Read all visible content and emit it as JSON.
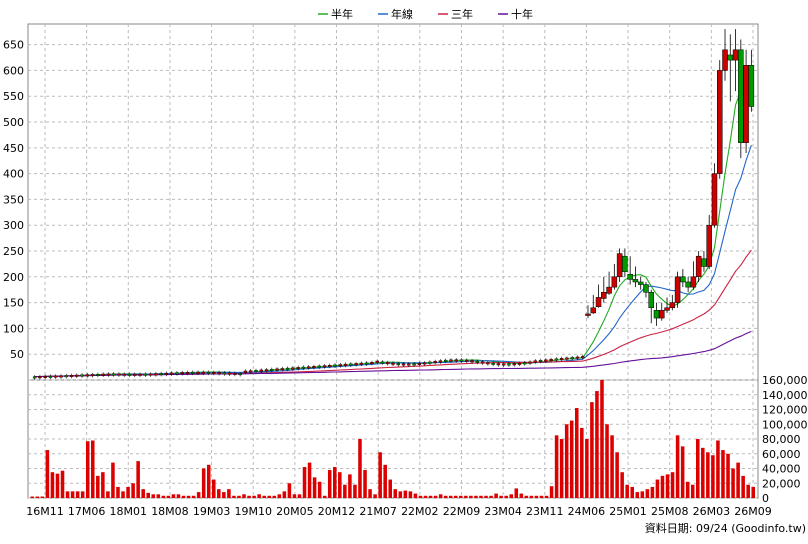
{
  "chart_data": {
    "type": "candlestick-with-volume",
    "legend": [
      {
        "label": "半年",
        "color": "#22aa22"
      },
      {
        "label": "年線",
        "color": "#2266cc"
      },
      {
        "label": "三年",
        "color": "#cc2244"
      },
      {
        "label": "十年",
        "color": "#661199"
      }
    ],
    "price_axis": {
      "ticks": [
        50,
        100,
        150,
        200,
        250,
        300,
        350,
        400,
        450,
        500,
        550,
        600,
        650
      ],
      "ylim": [
        0,
        690
      ]
    },
    "volume_axis": {
      "ticks": [
        "0",
        "20,000",
        "40,000",
        "60,000",
        "80,000",
        "100,000",
        "120,000",
        "140,000",
        "160,000"
      ],
      "ylim": [
        0,
        160000
      ]
    },
    "x_labels": [
      "16M11",
      "17M06",
      "18M01",
      "18M08",
      "19M03",
      "19M10",
      "20M05",
      "20M12",
      "21M07",
      "22M02",
      "22M09",
      "23M04",
      "23M11",
      "24M06",
      "25M01",
      "25M08",
      "26M03",
      "26M09"
    ],
    "footer": "資料日期: 09/24  (Goodinfo.tw)",
    "colors": {
      "up": "#cc0000",
      "down": "#009900",
      "volume": "#dd0000"
    },
    "ohlc": [
      [
        [
          5,
          9
        ],
        [
          11,
          12
        ],
        [
          15,
          18
        ],
        [
          22,
          25
        ],
        [
          28,
          30
        ],
        [
          34,
          36
        ],
        [
          40,
          44
        ],
        [
          46,
          49
        ],
        [
          52,
          55
        ],
        [
          57,
          62
        ],
        [
          64,
          68
        ],
        [
          70,
          74
        ],
        [
          76,
          80
        ],
        [
          82,
          85
        ],
        [
          86,
          90
        ],
        [
          91,
          94
        ],
        [
          96,
          100
        ],
        [
          102,
          105
        ],
        [
          106,
          110
        ],
        [
          111,
          114
        ],
        [
          116,
          118
        ],
        [
          119,
          122
        ]
      ],
      {
        "note": "tail period candles",
        "pts": [
          [
            125,
            128,
            145,
            120,
            "u"
          ],
          [
            130,
            140,
            165,
            128,
            "u"
          ],
          [
            142,
            160,
            185,
            140,
            "u"
          ],
          [
            158,
            170,
            200,
            150,
            "u"
          ],
          [
            168,
            180,
            210,
            165,
            "u"
          ],
          [
            180,
            200,
            225,
            175,
            "u"
          ],
          [
            200,
            245,
            255,
            190,
            "u"
          ],
          [
            240,
            210,
            255,
            200,
            "d"
          ],
          [
            205,
            195,
            240,
            185,
            "d"
          ],
          [
            195,
            190,
            220,
            180,
            "d"
          ],
          [
            190,
            185,
            200,
            175,
            "d"
          ],
          [
            185,
            170,
            190,
            160,
            "d"
          ],
          [
            170,
            140,
            175,
            110,
            "d"
          ],
          [
            135,
            120,
            150,
            105,
            "d"
          ],
          [
            120,
            135,
            150,
            115,
            "u"
          ],
          [
            135,
            140,
            160,
            130,
            "u"
          ],
          [
            140,
            150,
            165,
            135,
            "u"
          ],
          [
            150,
            200,
            210,
            140,
            "u"
          ],
          [
            200,
            190,
            215,
            180,
            "d"
          ],
          [
            190,
            180,
            200,
            170,
            "d"
          ],
          [
            180,
            200,
            230,
            175,
            "u"
          ],
          [
            200,
            240,
            250,
            190,
            "u"
          ],
          [
            235,
            220,
            250,
            210,
            "d"
          ],
          [
            220,
            300,
            320,
            215,
            "u"
          ],
          [
            300,
            400,
            420,
            295,
            "u"
          ],
          [
            400,
            600,
            620,
            390,
            "u"
          ],
          [
            600,
            640,
            680,
            580,
            "u"
          ],
          [
            630,
            620,
            670,
            540,
            "d"
          ],
          [
            620,
            640,
            680,
            560,
            "u"
          ],
          [
            640,
            460,
            660,
            430,
            "d"
          ],
          [
            460,
            610,
            640,
            440,
            "u"
          ],
          [
            610,
            530,
            640,
            520,
            "d"
          ]
        ]
      }
    ],
    "volumes": [
      2,
      2,
      2,
      65,
      35,
      33,
      37,
      9,
      9,
      9,
      9,
      77,
      78,
      30,
      35,
      9,
      48,
      15,
      9,
      15,
      20,
      50,
      12,
      7,
      5,
      5,
      3,
      3,
      5,
      5,
      3,
      3,
      3,
      8,
      40,
      45,
      25,
      12,
      8,
      12,
      3,
      3,
      5,
      3,
      3,
      5,
      3,
      3,
      3,
      5,
      9,
      20,
      5,
      5,
      42,
      48,
      28,
      22,
      3,
      38,
      42,
      35,
      18,
      32,
      18,
      80,
      38,
      12,
      5,
      62,
      45,
      25,
      12,
      9,
      10,
      9,
      6,
      3,
      3,
      3,
      3,
      5,
      3,
      3,
      3,
      3,
      3,
      3,
      3,
      3,
      3,
      3,
      6,
      3,
      3,
      5,
      13,
      6,
      3,
      3,
      3,
      3,
      3,
      16,
      85,
      80,
      100,
      105,
      122,
      95,
      80,
      130,
      145,
      160,
      100,
      85,
      62,
      35,
      18,
      15,
      8,
      9,
      12,
      15,
      25,
      30,
      32,
      35,
      85,
      70,
      22,
      18,
      80,
      68,
      62,
      58,
      78,
      65,
      60,
      40,
      48,
      30,
      18,
      15
    ]
  }
}
